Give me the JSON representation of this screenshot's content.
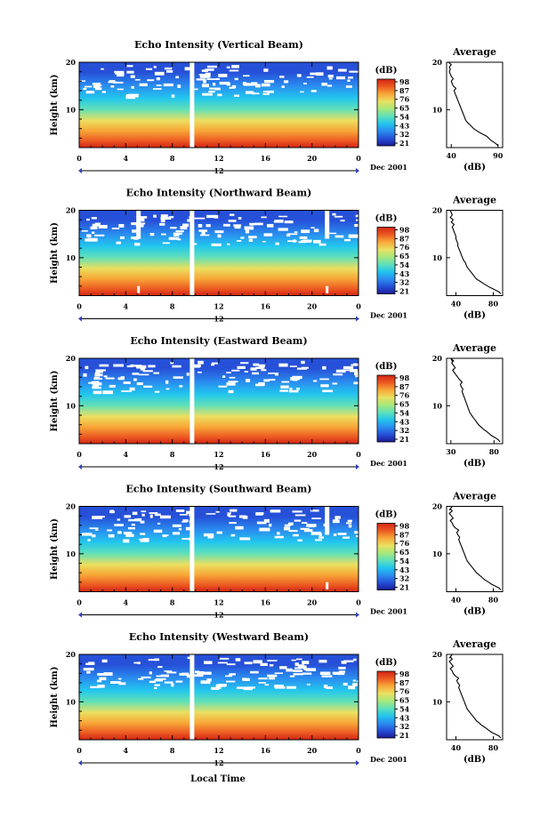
{
  "xlabel_bottom": "Local Time",
  "colorbar_colors": [
    "#1b1b96",
    "#2650d8",
    "#2a8ef0",
    "#22c6ee",
    "#60e0b8",
    "#a8e87c",
    "#eae060",
    "#f8a838",
    "#ec5a22",
    "#d42414"
  ],
  "chart_data": [
    {
      "type": "heatmap",
      "title": "Echo Intensity (Vertical Beam)",
      "ylabel": "Height (km)",
      "x_ticks": [
        "0",
        "4",
        "8",
        "12",
        "16",
        "20",
        "0"
      ],
      "xlim": [
        0,
        24
      ],
      "y_ticks": [
        "20",
        "10"
      ],
      "ylim": [
        2,
        20
      ],
      "date_label": "12",
      "date_suffix": "Dec 2001",
      "colorbar_unit": "(dB)",
      "colorbar_ticks": [
        "98",
        "87",
        "76",
        "65",
        "54",
        "43",
        "32",
        "21"
      ],
      "gap_hours": [
        9.7
      ],
      "profile": {
        "title": "Average",
        "xlabel": "(dB)",
        "x_ticks": [
          "40",
          "90"
        ],
        "xlim": [
          35,
          95
        ],
        "y_ticks": [
          "20",
          "10"
        ],
        "ylim": [
          2,
          20
        ],
        "x": [
          90,
          88,
          85,
          82,
          80,
          78,
          74,
          70,
          67,
          64,
          62,
          60,
          58,
          56,
          55,
          54,
          53,
          52,
          51,
          50,
          49,
          48,
          47,
          46,
          45,
          44,
          43,
          45,
          42,
          41,
          40,
          42,
          40,
          39,
          38,
          39,
          38,
          40,
          37
        ],
        "y": [
          2.4,
          2.8,
          3.2,
          3.6,
          4.0,
          4.4,
          4.8,
          5.2,
          5.6,
          6.0,
          6.4,
          6.8,
          7.2,
          7.6,
          8.0,
          8.5,
          9.0,
          9.5,
          10.0,
          10.5,
          11.0,
          11.5,
          12.0,
          12.5,
          13.0,
          13.5,
          14.0,
          14.5,
          15.0,
          15.5,
          16.0,
          16.5,
          17.0,
          17.5,
          18.0,
          18.5,
          19.0,
          19.5,
          20.0
        ]
      }
    },
    {
      "type": "heatmap",
      "title": "Echo Intensity (Northward Beam)",
      "ylabel": "Height (km)",
      "x_ticks": [
        "0",
        "4",
        "8",
        "12",
        "16",
        "20",
        "0"
      ],
      "xlim": [
        0,
        24
      ],
      "y_ticks": [
        "20",
        "10"
      ],
      "ylim": [
        2,
        20
      ],
      "date_label": "12",
      "date_suffix": "Dec 2001",
      "colorbar_unit": "(dB)",
      "colorbar_ticks": [
        "98",
        "87",
        "76",
        "65",
        "54",
        "43",
        "32",
        "21"
      ],
      "gap_hours": [
        5.1,
        9.7,
        21.3
      ],
      "profile": {
        "title": "Average",
        "xlabel": "(dB)",
        "x_ticks": [
          "40",
          "80"
        ],
        "xlim": [
          30,
          90
        ],
        "y_ticks": [
          "20",
          "10"
        ],
        "ylim": [
          2,
          20
        ],
        "x": [
          88,
          86,
          82,
          78,
          74,
          70,
          66,
          62,
          60,
          58,
          56,
          54,
          52,
          51,
          50,
          48,
          47,
          46,
          45,
          44,
          43,
          42,
          42,
          41,
          40,
          40,
          39,
          38,
          37,
          36,
          38,
          35,
          37,
          34,
          36,
          35,
          34,
          36
        ],
        "y": [
          2.4,
          2.8,
          3.2,
          3.6,
          4.0,
          4.5,
          5.0,
          5.5,
          6.0,
          6.5,
          7.0,
          7.5,
          8.0,
          8.5,
          9.0,
          9.5,
          10.0,
          10.5,
          11.0,
          11.5,
          12.0,
          12.5,
          13.0,
          13.5,
          14.0,
          14.5,
          15.0,
          15.5,
          16.0,
          16.5,
          17.0,
          17.5,
          18.0,
          18.5,
          19.0,
          19.5,
          20.0,
          19.0
        ]
      }
    },
    {
      "type": "heatmap",
      "title": "Echo Intensity (Eastward Beam)",
      "ylabel": "Height (km)",
      "x_ticks": [
        "0",
        "4",
        "8",
        "12",
        "16",
        "20",
        "0"
      ],
      "xlim": [
        0,
        24
      ],
      "y_ticks": [
        "20",
        "10"
      ],
      "ylim": [
        2,
        20
      ],
      "date_label": "12",
      "date_suffix": "Dec 2001",
      "colorbar_unit": "(dB)",
      "colorbar_ticks": [
        "98",
        "87",
        "76",
        "65",
        "54",
        "43",
        "32",
        "21"
      ],
      "gap_hours": [
        9.7
      ],
      "profile": {
        "title": "Average",
        "xlabel": "(dB)",
        "x_ticks": [
          "30",
          "80"
        ],
        "xlim": [
          25,
          90
        ],
        "y_ticks": [
          "20",
          "10"
        ],
        "ylim": [
          2,
          20
        ],
        "x": [
          87,
          85,
          82,
          78,
          75,
          72,
          68,
          65,
          62,
          60,
          58,
          56,
          54,
          52,
          51,
          50,
          49,
          48,
          47,
          46,
          45,
          44,
          43,
          44,
          42,
          41,
          43,
          40,
          38,
          36,
          34,
          32,
          35,
          33,
          31,
          33,
          30,
          32
        ],
        "y": [
          2.4,
          2.8,
          3.2,
          3.6,
          4.0,
          4.5,
          5.0,
          5.5,
          6.0,
          6.5,
          7.0,
          7.5,
          8.0,
          8.5,
          9.0,
          9.5,
          10.0,
          10.5,
          11.0,
          11.5,
          12.0,
          12.5,
          13.0,
          13.5,
          14.0,
          14.5,
          15.0,
          15.5,
          16.0,
          16.5,
          17.0,
          17.5,
          18.0,
          18.5,
          19.0,
          19.5,
          20.0,
          19.2
        ]
      }
    },
    {
      "type": "heatmap",
      "title": "Echo Intensity (Southward Beam)",
      "ylabel": "Height (km)",
      "x_ticks": [
        "0",
        "4",
        "8",
        "12",
        "16",
        "20",
        "0"
      ],
      "xlim": [
        0,
        24
      ],
      "y_ticks": [
        "20",
        "10"
      ],
      "ylim": [
        2,
        20
      ],
      "date_label": "12",
      "date_suffix": "Dec 2001",
      "colorbar_unit": "(dB)",
      "colorbar_ticks": [
        "98",
        "87",
        "76",
        "65",
        "54",
        "43",
        "32",
        "21"
      ],
      "gap_hours": [
        9.7,
        21.3
      ],
      "profile": {
        "title": "Average",
        "xlabel": "(dB)",
        "x_ticks": [
          "40",
          "80"
        ],
        "xlim": [
          30,
          90
        ],
        "y_ticks": [
          "20",
          "10"
        ],
        "ylim": [
          2,
          20
        ],
        "x": [
          88,
          86,
          82,
          78,
          75,
          71,
          68,
          65,
          62,
          60,
          58,
          56,
          54,
          52,
          51,
          50,
          49,
          48,
          47,
          46,
          45,
          44,
          43,
          44,
          42,
          41,
          43,
          39,
          37,
          36,
          34,
          37,
          35,
          33,
          36,
          34,
          36,
          33
        ],
        "y": [
          2.4,
          2.8,
          3.2,
          3.6,
          4.0,
          4.5,
          5.0,
          5.5,
          6.0,
          6.5,
          7.0,
          7.5,
          8.0,
          8.5,
          9.0,
          9.5,
          10.0,
          10.5,
          11.0,
          11.5,
          12.0,
          12.5,
          13.0,
          13.5,
          14.0,
          14.5,
          15.0,
          15.5,
          16.0,
          16.5,
          17.0,
          17.5,
          18.0,
          18.5,
          19.0,
          19.5,
          20.0,
          19.2
        ]
      }
    },
    {
      "type": "heatmap",
      "title": "Echo Intensity (Westward Beam)",
      "ylabel": "Height (km)",
      "x_ticks": [
        "0",
        "4",
        "8",
        "12",
        "16",
        "20",
        "0"
      ],
      "xlim": [
        0,
        24
      ],
      "y_ticks": [
        "20",
        "10"
      ],
      "ylim": [
        2,
        20
      ],
      "date_label": "12",
      "date_suffix": "Dec 2001",
      "colorbar_unit": "(dB)",
      "colorbar_ticks": [
        "98",
        "87",
        "76",
        "65",
        "54",
        "43",
        "32",
        "21"
      ],
      "gap_hours": [
        9.7
      ],
      "profile": {
        "title": "Average",
        "xlabel": "(dB)",
        "x_ticks": [
          "40",
          "80"
        ],
        "xlim": [
          30,
          90
        ],
        "y_ticks": [
          "20",
          "10"
        ],
        "ylim": [
          2,
          20
        ],
        "x": [
          88,
          86,
          82,
          78,
          75,
          72,
          68,
          65,
          62,
          60,
          58,
          56,
          54,
          52,
          51,
          50,
          49,
          48,
          47,
          46,
          45,
          44,
          43,
          44,
          42,
          41,
          43,
          39,
          37,
          36,
          34,
          37,
          35,
          33,
          36,
          34,
          36,
          33
        ],
        "y": [
          2.4,
          2.8,
          3.2,
          3.6,
          4.0,
          4.5,
          5.0,
          5.5,
          6.0,
          6.5,
          7.0,
          7.5,
          8.0,
          8.5,
          9.0,
          9.5,
          10.0,
          10.5,
          11.0,
          11.5,
          12.0,
          12.5,
          13.0,
          13.5,
          14.0,
          14.5,
          15.0,
          15.5,
          16.0,
          16.5,
          17.0,
          17.5,
          18.0,
          18.5,
          19.0,
          19.5,
          20.0,
          19.2
        ]
      }
    }
  ]
}
